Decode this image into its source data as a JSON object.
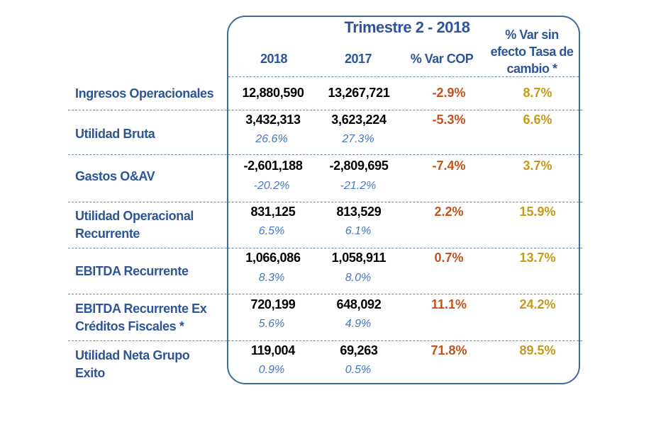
{
  "header": {
    "title": "Trimestre 2 - 2018",
    "col_2018": "2018",
    "col_2017": "2017",
    "col_var_cop": "% Var COP",
    "col_var_sin_line1": "% Var sin",
    "col_var_sin_line2": "efecto Tasa de",
    "col_var_sin_line3": "cambio *"
  },
  "rows": [
    {
      "label_line1": "Ingresos Operacionales",
      "label_line2": "",
      "v2018": "12,880,590",
      "v2017": "13,267,721",
      "p2018": "",
      "p2017": "",
      "var_cop": "-2.9%",
      "var_sin": "8.7%"
    },
    {
      "label_line1": "Utilidad  Bruta",
      "label_line2": "",
      "v2018": "3,432,313",
      "v2017": "3,623,224",
      "p2018": "26.6%",
      "p2017": "27.3%",
      "var_cop": "-5.3%",
      "var_sin": "6.6%"
    },
    {
      "label_line1": "Gastos  O&AV",
      "label_line2": "",
      "v2018": "-2,601,188",
      "v2017": "-2,809,695",
      "p2018": "-20.2%",
      "p2017": "-21.2%",
      "var_cop": "-7.4%",
      "var_sin": "3.7%"
    },
    {
      "label_line1": "Utilidad  Operacional",
      "label_line2": "Recurrente",
      "v2018": "831,125",
      "v2017": "813,529",
      "p2018": "6.5%",
      "p2017": "6.1%",
      "var_cop": "2.2%",
      "var_sin": "15.9%"
    },
    {
      "label_line1": "EBITDA Recurrente",
      "label_line2": "",
      "v2018": "1,066,086",
      "v2017": "1,058,911",
      "p2018": "8.3%",
      "p2017": "8.0%",
      "var_cop": "0.7%",
      "var_sin": "13.7%"
    },
    {
      "label_line1": "EBITDA Recurrente Ex",
      "label_line2": "Créditos Fiscales *",
      "v2018": "720,199",
      "v2017": "648,092",
      "p2018": "5.6%",
      "p2017": "4.9%",
      "var_cop": "11.1%",
      "var_sin": "24.2%"
    },
    {
      "label_line1": "Utilidad  Neta Grupo",
      "label_line2": "Exito",
      "v2018": "119,004",
      "v2017": "69,263",
      "p2018": "0.9%",
      "p2017": "0.5%",
      "var_cop": "71.8%",
      "var_sin": "89.5%"
    }
  ]
}
